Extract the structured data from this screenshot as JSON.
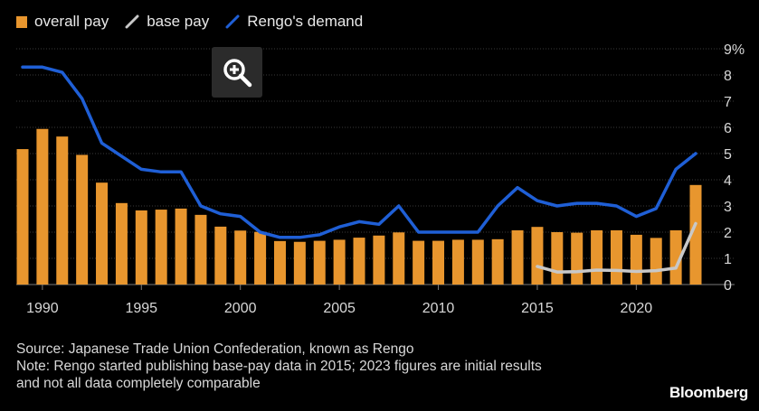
{
  "legend": [
    {
      "label": "overall pay",
      "color": "#e8962e",
      "kind": "bar"
    },
    {
      "label": "base pay",
      "color": "#c8c8c8",
      "kind": "line"
    },
    {
      "label": "Rengo's demand",
      "color": "#1f5fd6",
      "kind": "line"
    }
  ],
  "zoom": {
    "icon": "zoom-in-icon"
  },
  "footer": {
    "source": "Source: Japanese Trade Union Confederation, known as Rengo",
    "note1": "Note: Rengo started publishing base-pay data in 2015; 2023 figures are initial results",
    "note2": "and not all data completely comparable"
  },
  "brand": "Bloomberg",
  "chart_data": {
    "type": "bar",
    "x": [
      1989,
      1990,
      1991,
      1992,
      1993,
      1994,
      1995,
      1996,
      1997,
      1998,
      1999,
      2000,
      2001,
      2002,
      2003,
      2004,
      2005,
      2006,
      2007,
      2008,
      2009,
      2010,
      2011,
      2012,
      2013,
      2014,
      2015,
      2016,
      2017,
      2018,
      2019,
      2020,
      2021,
      2022,
      2023
    ],
    "xticks": [
      1990,
      1995,
      2000,
      2005,
      2010,
      2015,
      2020
    ],
    "yticks": [
      0,
      1,
      2,
      3,
      4,
      5,
      6,
      7,
      8,
      9
    ],
    "ytick_labels": [
      "0",
      "1",
      "2",
      "3",
      "4",
      "5",
      "6",
      "7",
      "8",
      "9%"
    ],
    "ylim": [
      0,
      9
    ],
    "series": [
      {
        "name": "overall pay",
        "type": "bar",
        "color": "#e8962e",
        "values": [
          5.17,
          5.94,
          5.65,
          4.95,
          3.89,
          3.11,
          2.83,
          2.86,
          2.9,
          2.66,
          2.21,
          2.06,
          2.01,
          1.66,
          1.63,
          1.67,
          1.71,
          1.79,
          1.87,
          1.99,
          1.67,
          1.67,
          1.71,
          1.71,
          1.73,
          2.07,
          2.2,
          2.0,
          1.98,
          2.07,
          2.07,
          1.9,
          1.78,
          2.07,
          3.8
        ]
      },
      {
        "name": "base pay",
        "type": "line",
        "color": "#c8c8c8",
        "x": [
          2015,
          2016,
          2017,
          2018,
          2019,
          2020,
          2021,
          2022,
          2023
        ],
        "values": [
          0.69,
          0.48,
          0.49,
          0.55,
          0.54,
          0.5,
          0.53,
          0.63,
          2.33
        ]
      },
      {
        "name": "Rengo's demand",
        "type": "line",
        "color": "#1f5fd6",
        "x": [
          1989,
          1990,
          1991,
          1992,
          1993,
          1994,
          1995,
          1996,
          1997,
          1998,
          1999,
          2000,
          2001,
          2002,
          2003,
          2004,
          2005,
          2006,
          2007,
          2008,
          2009,
          2010,
          2011,
          2012,
          2013,
          2014,
          2015,
          2016,
          2017,
          2018,
          2019,
          2020,
          2021,
          2022,
          2023
        ],
        "values": [
          8.3,
          8.3,
          8.1,
          7.1,
          5.4,
          4.9,
          4.4,
          4.3,
          4.3,
          3.0,
          2.7,
          2.6,
          2.0,
          1.8,
          1.8,
          1.9,
          2.2,
          2.4,
          2.3,
          3.0,
          2.0,
          2.0,
          2.0,
          2.0,
          3.0,
          3.7,
          3.2,
          3.0,
          3.1,
          3.1,
          3.0,
          2.6,
          2.9,
          4.4,
          5.0
        ]
      }
    ],
    "grid": true,
    "legend_position": "top-left"
  }
}
